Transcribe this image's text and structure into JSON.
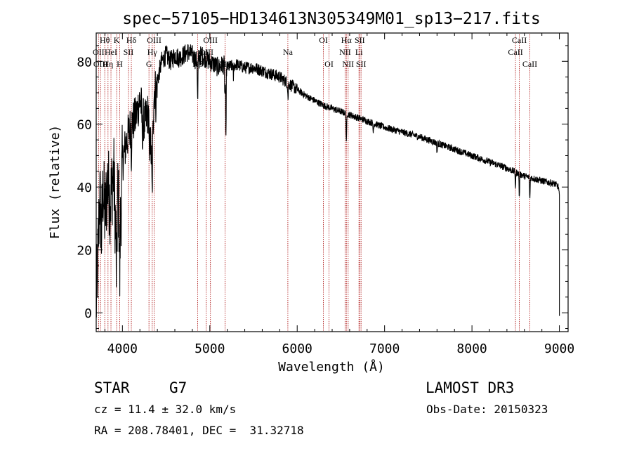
{
  "chart_data": {
    "type": "line",
    "title": "spec−57105−HD134613N305349M01_sp13−217.fits",
    "xlabel": "Wavelength (Å)",
    "ylabel": "Flux (relative)",
    "xlim": [
      3700,
      9100
    ],
    "ylim": [
      -6,
      89
    ],
    "x_ticks": [
      4000,
      5000,
      6000,
      7000,
      8000,
      9000
    ],
    "y_ticks": [
      0,
      20,
      40,
      60,
      80
    ],
    "grid": false,
    "spectrum_anchors": [
      [
        3700,
        2
      ],
      [
        3720,
        18
      ],
      [
        3740,
        38
      ],
      [
        3760,
        25
      ],
      [
        3780,
        40
      ],
      [
        3800,
        30
      ],
      [
        3830,
        42
      ],
      [
        3860,
        35
      ],
      [
        3900,
        45
      ],
      [
        3930,
        20
      ],
      [
        3950,
        40
      ],
      [
        3970,
        22
      ],
      [
        4000,
        48
      ],
      [
        4050,
        55
      ],
      [
        4100,
        60
      ],
      [
        4150,
        62
      ],
      [
        4200,
        68
      ],
      [
        4250,
        60
      ],
      [
        4300,
        64
      ],
      [
        4340,
        45
      ],
      [
        4360,
        70
      ],
      [
        4400,
        74
      ],
      [
        4450,
        80
      ],
      [
        4500,
        82
      ],
      [
        4550,
        80
      ],
      [
        4600,
        82
      ],
      [
        4650,
        81
      ],
      [
        4700,
        82
      ],
      [
        4750,
        83
      ],
      [
        4800,
        82
      ],
      [
        4850,
        80
      ],
      [
        4900,
        82
      ],
      [
        4950,
        81
      ],
      [
        5000,
        80
      ],
      [
        5050,
        79
      ],
      [
        5100,
        78
      ],
      [
        5150,
        79
      ],
      [
        5200,
        78
      ],
      [
        5300,
        79
      ],
      [
        5400,
        78
      ],
      [
        5500,
        78
      ],
      [
        5600,
        77
      ],
      [
        5700,
        76
      ],
      [
        5800,
        75
      ],
      [
        5900,
        73
      ],
      [
        6000,
        71
      ],
      [
        6100,
        69
      ],
      [
        6200,
        67.5
      ],
      [
        6300,
        66
      ],
      [
        6400,
        65
      ],
      [
        6500,
        64
      ],
      [
        6600,
        63
      ],
      [
        6700,
        62
      ],
      [
        6800,
        61
      ],
      [
        6900,
        60
      ],
      [
        7000,
        59
      ],
      [
        7200,
        57.5
      ],
      [
        7400,
        56
      ],
      [
        7600,
        54
      ],
      [
        7800,
        52
      ],
      [
        8000,
        50
      ],
      [
        8200,
        48
      ],
      [
        8400,
        46
      ],
      [
        8600,
        43.5
      ],
      [
        8800,
        42
      ],
      [
        8950,
        41
      ],
      [
        8990,
        40
      ],
      [
        9000,
        37
      ]
    ],
    "absorption_dips": [
      [
        3934,
        -14
      ],
      [
        3969,
        -12
      ],
      [
        4102,
        -10
      ],
      [
        4227,
        -8
      ],
      [
        4308,
        -14
      ],
      [
        4340,
        -8
      ],
      [
        4384,
        -6
      ],
      [
        4861,
        -14
      ],
      [
        5173,
        -10
      ],
      [
        5184,
        -26
      ],
      [
        5270,
        -4
      ],
      [
        5895,
        -5
      ],
      [
        6563,
        -10
      ],
      [
        6870,
        -3
      ],
      [
        7600,
        -3
      ],
      [
        8498,
        -5
      ],
      [
        8542,
        -8
      ],
      [
        8662,
        -7
      ]
    ],
    "emission_lines": [
      {
        "wavelength": 3727,
        "label": "OII",
        "row": 2
      },
      {
        "wavelength": 3750,
        "label": "OIII",
        "row": 3
      },
      {
        "wavelength": 3798,
        "label": "Hθ",
        "row": 1
      },
      {
        "wavelength": 3835,
        "label": "Hη",
        "row": 3
      },
      {
        "wavelength": 3869,
        "label": "HeI",
        "row": 2
      },
      {
        "wavelength": 3934,
        "label": "K",
        "row": 1
      },
      {
        "wavelength": 3969,
        "label": "H",
        "row": 3
      },
      {
        "wavelength": 4069,
        "label": "SII",
        "row": 2
      },
      {
        "wavelength": 4102,
        "label": "Hδ",
        "row": 1
      },
      {
        "wavelength": 4304,
        "label": "G",
        "row": 3
      },
      {
        "wavelength": 4341,
        "label": "Hγ",
        "row": 2
      },
      {
        "wavelength": 4363,
        "label": "OIII",
        "row": 1
      },
      {
        "wavelength": 4861,
        "label": "Hβ",
        "row": 3
      },
      {
        "wavelength": 4959,
        "label": "OIII",
        "row": 2
      },
      {
        "wavelength": 5007,
        "label": "OIII",
        "row": 1
      },
      {
        "wavelength": 5175,
        "label": "Mg",
        "row": 3
      },
      {
        "wavelength": 5893,
        "label": "Na",
        "row": 2
      },
      {
        "wavelength": 6300,
        "label": "OI",
        "row": 1
      },
      {
        "wavelength": 6364,
        "label": "OI",
        "row": 3
      },
      {
        "wavelength": 6548,
        "label": "NII",
        "row": 2
      },
      {
        "wavelength": 6563,
        "label": "Hα",
        "row": 1
      },
      {
        "wavelength": 6583,
        "label": "NII",
        "row": 3
      },
      {
        "wavelength": 6707,
        "label": "Li",
        "row": 2
      },
      {
        "wavelength": 6716,
        "label": "SII",
        "row": 1
      },
      {
        "wavelength": 6731,
        "label": "SII",
        "row": 3
      },
      {
        "wavelength": 8498,
        "label": "CaII",
        "row": 2
      },
      {
        "wavelength": 8542,
        "label": "CaII",
        "row": 1
      },
      {
        "wavelength": 8662,
        "label": "CaII",
        "row": 3
      }
    ]
  },
  "info": {
    "object_class": "STAR",
    "subclass": "G7",
    "survey": "LAMOST DR3",
    "redshift_line": "cz = 11.4 ± 32.0 km/s",
    "obs_date_line": "Obs-Date: 20150323",
    "coords_line": "RA = 208.78401, DEC =  31.32718"
  },
  "colors": {
    "line": "#000000",
    "marker": "#b22222",
    "axis": "#000000"
  }
}
